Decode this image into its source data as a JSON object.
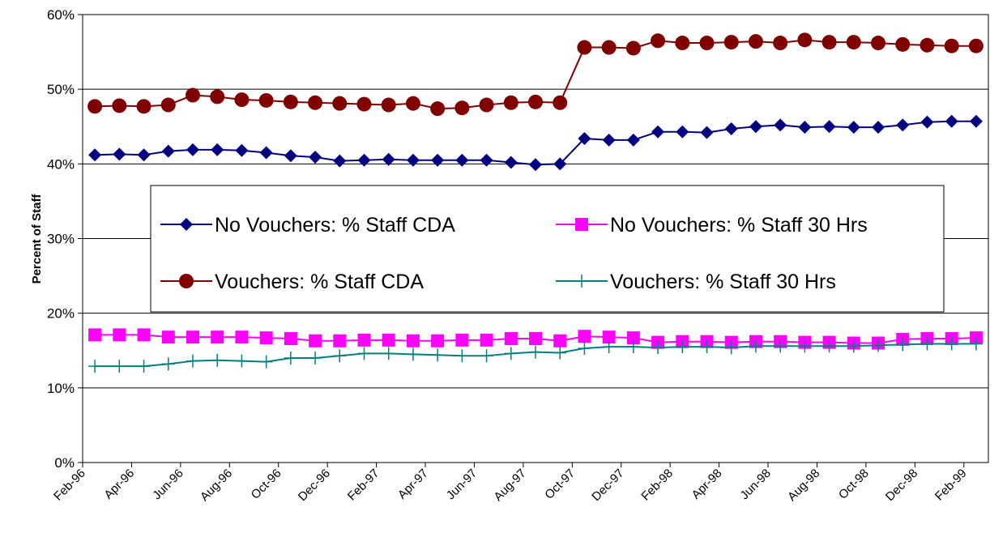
{
  "chart_data": {
    "type": "line",
    "y_label": "Percent of Staff",
    "categories": [
      "Feb-96",
      null,
      "Apr-96",
      null,
      "Jun-96",
      null,
      "Aug-96",
      null,
      "Oct-96",
      null,
      "Dec-96",
      null,
      "Feb-97",
      null,
      "Apr-97",
      null,
      "Jun-97",
      null,
      "Aug-97",
      null,
      "Oct-97",
      null,
      "Dec-97",
      null,
      "Feb-98",
      null,
      "Apr-98",
      null,
      "Jun-98",
      null,
      "Aug-98",
      null,
      "Oct-98",
      null,
      "Dec-98",
      null,
      "Feb-99"
    ],
    "series": [
      {
        "name": "No Vouchers: % Staff CDA",
        "color": "#000080",
        "marker": "diamond",
        "values": [
          41.2,
          41.3,
          41.2,
          41.7,
          41.9,
          41.9,
          41.8,
          41.5,
          41.1,
          40.9,
          40.4,
          40.5,
          40.6,
          40.5,
          40.5,
          40.5,
          40.5,
          40.2,
          39.9,
          40.0,
          43.4,
          43.2,
          43.2,
          44.3,
          44.3,
          44.2,
          44.7,
          45.0,
          45.2,
          44.9,
          45.0,
          44.9,
          44.9,
          45.2,
          45.6,
          45.7,
          45.7
        ]
      },
      {
        "name": "No Vouchers: % Staff 30 Hrs",
        "color": "#ff00ff",
        "marker": "square",
        "values": [
          17.1,
          17.1,
          17.1,
          16.8,
          16.8,
          16.8,
          16.8,
          16.7,
          16.6,
          16.3,
          16.3,
          16.4,
          16.4,
          16.3,
          16.3,
          16.4,
          16.4,
          16.6,
          16.6,
          16.3,
          16.9,
          16.8,
          16.7,
          16.1,
          16.2,
          16.2,
          16.1,
          16.2,
          16.2,
          16.1,
          16.1,
          16.0,
          16.0,
          16.5,
          16.6,
          16.6,
          16.7
        ]
      },
      {
        "name": "Vouchers: % Staff CDA",
        "color": "#800000",
        "marker": "circle",
        "values": [
          47.7,
          47.8,
          47.7,
          47.9,
          49.2,
          49.0,
          48.6,
          48.5,
          48.3,
          48.2,
          48.1,
          48.0,
          47.9,
          48.1,
          47.4,
          47.5,
          47.9,
          48.2,
          48.3,
          48.2,
          55.6,
          55.6,
          55.5,
          56.5,
          56.2,
          56.2,
          56.3,
          56.4,
          56.2,
          56.6,
          56.3,
          56.3,
          56.2,
          56.0,
          55.9,
          55.8,
          55.8
        ]
      },
      {
        "name": "Vouchers: % Staff 30 Hrs",
        "color": "#008080",
        "marker": "plus",
        "values": [
          12.9,
          12.9,
          12.9,
          13.2,
          13.6,
          13.7,
          13.6,
          13.5,
          14.0,
          14.0,
          14.3,
          14.6,
          14.6,
          14.5,
          14.4,
          14.3,
          14.3,
          14.6,
          14.8,
          14.7,
          15.3,
          15.5,
          15.5,
          15.4,
          15.5,
          15.5,
          15.4,
          15.6,
          15.6,
          15.6,
          15.6,
          15.6,
          15.7,
          15.8,
          15.9,
          15.9,
          15.9
        ]
      }
    ],
    "ylim": [
      0,
      60
    ],
    "yticks": [
      {
        "value": 0,
        "label": "0%"
      },
      {
        "value": 10,
        "label": "10%"
      },
      {
        "value": 20,
        "label": "20%"
      },
      {
        "value": 30,
        "label": "30%"
      },
      {
        "value": 40,
        "label": "40%"
      },
      {
        "value": 50,
        "label": "50%"
      },
      {
        "value": 60,
        "label": "60%"
      }
    ],
    "grid": true
  }
}
